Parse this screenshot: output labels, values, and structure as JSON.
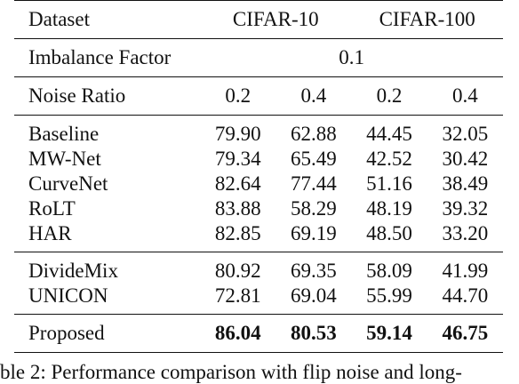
{
  "table": {
    "header": {
      "dataset_label": "Dataset",
      "datasets": [
        "CIFAR-10",
        "CIFAR-100"
      ],
      "imbalance_label": "Imbalance Factor",
      "imbalance_value": "0.1",
      "noise_label": "Noise Ratio",
      "noise_values": [
        "0.2",
        "0.4",
        "0.2",
        "0.4"
      ]
    },
    "group1": [
      {
        "method": "Baseline",
        "values": [
          "79.90",
          "62.88",
          "44.45",
          "32.05"
        ]
      },
      {
        "method": "MW-Net",
        "values": [
          "79.34",
          "65.49",
          "42.52",
          "30.42"
        ]
      },
      {
        "method": "CurveNet",
        "values": [
          "82.64",
          "77.44",
          "51.16",
          "38.49"
        ]
      },
      {
        "method": "RoLT",
        "values": [
          "83.88",
          "58.29",
          "48.19",
          "39.32"
        ]
      },
      {
        "method": "HAR",
        "values": [
          "82.85",
          "69.19",
          "48.50",
          "33.20"
        ]
      }
    ],
    "group2": [
      {
        "method": "DivideMix",
        "values": [
          "80.92",
          "69.35",
          "58.09",
          "41.99"
        ]
      },
      {
        "method": "UNICON",
        "values": [
          "72.81",
          "69.04",
          "55.99",
          "44.70"
        ]
      }
    ],
    "proposed": {
      "method": "Proposed",
      "values": [
        "86.04",
        "80.53",
        "59.14",
        "46.75"
      ]
    }
  },
  "caption": "ble 2: Performance comparison with flip noise and long-"
}
